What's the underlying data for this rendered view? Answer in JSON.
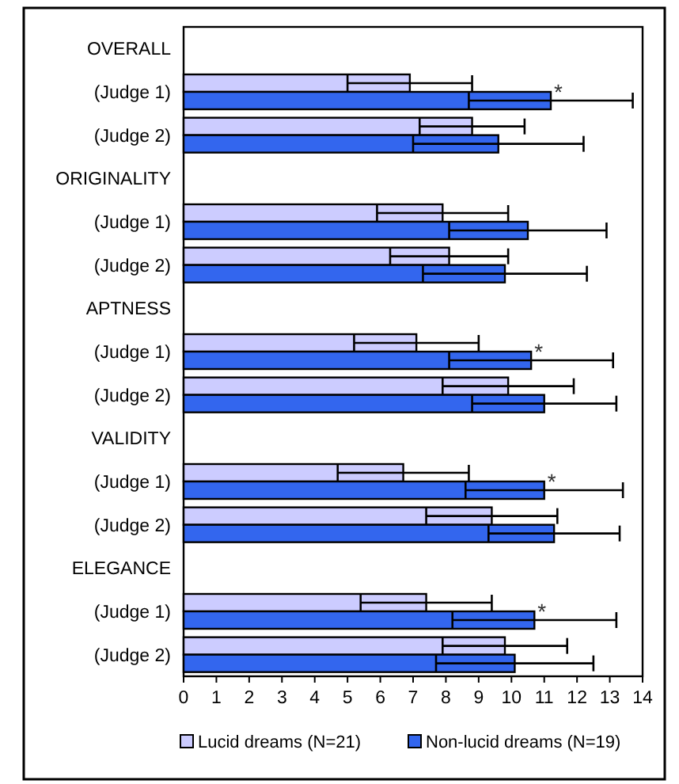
{
  "chart_data": {
    "type": "bar",
    "orientation": "horizontal",
    "categories": [
      "OVERALL",
      "(Judge 1)",
      "(Judge 2)",
      "ORIGINALITY",
      "(Judge 1)",
      "(Judge 2)",
      "APTNESS",
      "(Judge 1)",
      "(Judge 2)",
      "VALIDITY",
      "(Judge 1)",
      "(Judge 2)",
      "ELEGANCE",
      "(Judge 1)",
      "(Judge 2)"
    ],
    "series": [
      {
        "name": "Lucid dreams (N=21)",
        "color": "#ccccff",
        "values": [
          null,
          6.9,
          8.8,
          null,
          7.9,
          8.1,
          null,
          7.1,
          9.9,
          null,
          6.7,
          9.4,
          null,
          7.4,
          9.8
        ],
        "errors": [
          null,
          1.9,
          1.6,
          null,
          2.0,
          1.8,
          null,
          1.9,
          2.0,
          null,
          2.0,
          2.0,
          null,
          2.0,
          1.9
        ]
      },
      {
        "name": "Non-lucid dreams (N=19)",
        "color": "#3366ee",
        "values": [
          null,
          11.2,
          9.6,
          null,
          10.5,
          9.8,
          null,
          10.6,
          11.0,
          null,
          11.0,
          11.3,
          null,
          10.7,
          10.1
        ],
        "errors": [
          null,
          2.5,
          2.6,
          null,
          2.4,
          2.5,
          null,
          2.5,
          2.2,
          null,
          2.4,
          2.0,
          null,
          2.5,
          2.4
        ],
        "value_labels": [
          null,
          "*",
          null,
          null,
          null,
          null,
          null,
          "*",
          null,
          null,
          "*",
          null,
          null,
          "*",
          null
        ]
      }
    ],
    "xlim": [
      0,
      14
    ],
    "xticks": [
      0,
      1,
      2,
      3,
      4,
      5,
      6,
      7,
      8,
      9,
      10,
      11,
      12,
      13,
      14
    ],
    "legend": "bottom"
  }
}
